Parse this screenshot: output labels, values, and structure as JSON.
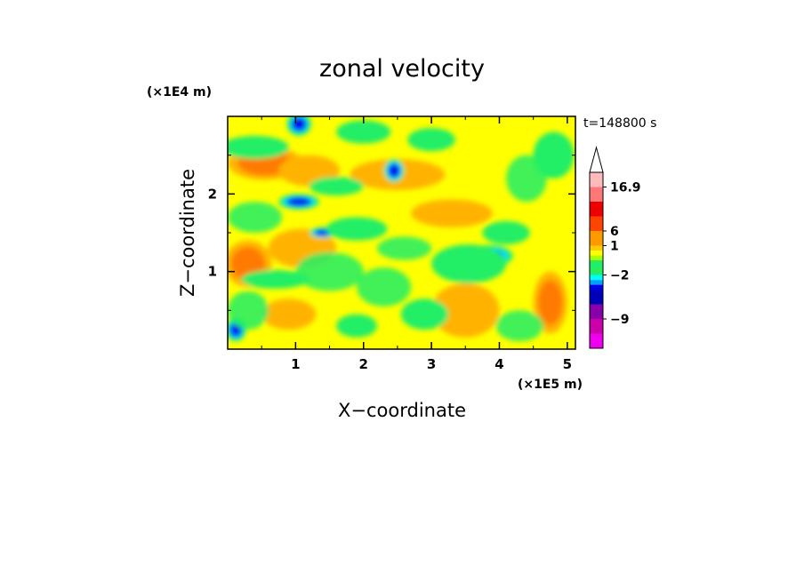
{
  "chart_data": {
    "type": "heatmap",
    "title": "zonal velocity",
    "xlabel": "X−coordinate",
    "ylabel": "Z−coordinate",
    "x_unit": "(×1E5 m)",
    "y_unit": "(×1E4 m)",
    "time_label": "t=148800 s",
    "xlim": [
      0,
      5.12
    ],
    "ylim": [
      0,
      3.0
    ],
    "x_ticks": [
      {
        "value": 1,
        "label": "1"
      },
      {
        "value": 2,
        "label": "2"
      },
      {
        "value": 3,
        "label": "3"
      },
      {
        "value": 4,
        "label": "4"
      },
      {
        "value": 5,
        "label": "5"
      }
    ],
    "y_ticks": [
      {
        "value": 1,
        "label": "1"
      },
      {
        "value": 2,
        "label": "2"
      }
    ],
    "colorbar": {
      "labels": [
        {
          "text": "16.9",
          "level": 7
        },
        {
          "text": "6",
          "level": 4
        },
        {
          "text": "1",
          "level": 3
        },
        {
          "text": "−2",
          "level": 1
        },
        {
          "text": "−9",
          "level": -2
        }
      ],
      "bins": [
        {
          "level": -4,
          "color": "#ee00ee"
        },
        {
          "level": -3,
          "color": "#cc00aa"
        },
        {
          "level": -2,
          "color": "#8800aa"
        },
        {
          "level": -1,
          "color": "#0000bb"
        },
        {
          "level": 0,
          "color": "#0000ee"
        },
        {
          "level": 0.33,
          "color": "#00a0ff"
        },
        {
          "level": 0.66,
          "color": "#00ffff"
        },
        {
          "level": 1,
          "color": "#22ee66"
        },
        {
          "level": 2,
          "color": "#aaff00"
        },
        {
          "level": 2.33,
          "color": "#ffff00"
        },
        {
          "level": 2.66,
          "color": "#ffcc00"
        },
        {
          "level": 3,
          "color": "#ff9900"
        },
        {
          "level": 4,
          "color": "#ff4400"
        },
        {
          "level": 5,
          "color": "#ee0000"
        },
        {
          "level": 6,
          "color": "#ff7777"
        },
        {
          "level": 7,
          "color": "#ffbbbb"
        }
      ],
      "extend_max": true
    },
    "field": {
      "palette": [
        "#0000bb",
        "#0000ee",
        "#00e0ff",
        "#22ee66",
        "#ffff00",
        "#ffb300",
        "#ff7a00",
        "#ee0000"
      ],
      "background_level": 4,
      "blobs": [
        {
          "x": 0.55,
          "y": 2.4,
          "rx": 0.55,
          "ry": 0.22,
          "lvl": 6
        },
        {
          "x": 1.2,
          "y": 2.3,
          "rx": 0.45,
          "ry": 0.2,
          "lvl": 5
        },
        {
          "x": 2.5,
          "y": 2.25,
          "rx": 0.7,
          "ry": 0.2,
          "lvl": 5
        },
        {
          "x": 3.3,
          "y": 1.75,
          "rx": 0.6,
          "ry": 0.18,
          "lvl": 5
        },
        {
          "x": 0.3,
          "y": 1.1,
          "rx": 0.35,
          "ry": 0.3,
          "lvl": 6
        },
        {
          "x": 1.1,
          "y": 1.3,
          "rx": 0.5,
          "ry": 0.25,
          "lvl": 5
        },
        {
          "x": 3.5,
          "y": 0.5,
          "rx": 0.5,
          "ry": 0.35,
          "lvl": 5
        },
        {
          "x": 0.9,
          "y": 0.45,
          "rx": 0.4,
          "ry": 0.2,
          "lvl": 5
        },
        {
          "x": 4.75,
          "y": 0.6,
          "rx": 0.25,
          "ry": 0.4,
          "lvl": 6
        },
        {
          "x": 1.05,
          "y": 1.9,
          "rx": 0.3,
          "ry": 0.1,
          "lvl": 1
        },
        {
          "x": 2.45,
          "y": 2.3,
          "rx": 0.15,
          "ry": 0.15,
          "lvl": 1
        },
        {
          "x": 3.85,
          "y": 1.2,
          "rx": 0.35,
          "ry": 0.14,
          "lvl": 1
        },
        {
          "x": 1.4,
          "y": 1.5,
          "rx": 0.2,
          "ry": 0.07,
          "lvl": 1
        },
        {
          "x": 1.05,
          "y": 2.9,
          "rx": 0.18,
          "ry": 0.15,
          "lvl": 1
        },
        {
          "x": 0.12,
          "y": 0.25,
          "rx": 0.15,
          "ry": 0.15,
          "lvl": 1
        },
        {
          "x": 0.4,
          "y": 2.6,
          "rx": 0.5,
          "ry": 0.15,
          "lvl": 3
        },
        {
          "x": 1.9,
          "y": 1.55,
          "rx": 0.45,
          "ry": 0.15,
          "lvl": 3
        },
        {
          "x": 3.55,
          "y": 1.1,
          "rx": 0.55,
          "ry": 0.25,
          "lvl": 3
        },
        {
          "x": 2.9,
          "y": 0.45,
          "rx": 0.35,
          "ry": 0.2,
          "lvl": 3
        },
        {
          "x": 1.9,
          "y": 0.3,
          "rx": 0.3,
          "ry": 0.15,
          "lvl": 3
        },
        {
          "x": 0.7,
          "y": 0.9,
          "rx": 0.5,
          "ry": 0.12,
          "lvl": 3
        },
        {
          "x": 4.8,
          "y": 2.5,
          "rx": 0.3,
          "ry": 0.3,
          "lvl": 3
        },
        {
          "x": 1.6,
          "y": 2.1,
          "rx": 0.4,
          "ry": 0.12,
          "lvl": 3
        },
        {
          "x": 2.0,
          "y": 2.8,
          "rx": 0.4,
          "ry": 0.15,
          "lvl": 3
        },
        {
          "x": 4.1,
          "y": 1.5,
          "rx": 0.35,
          "ry": 0.15,
          "lvl": 3
        },
        {
          "x": 3.0,
          "y": 2.7,
          "rx": 0.35,
          "ry": 0.15,
          "lvl": 3
        }
      ]
    }
  }
}
